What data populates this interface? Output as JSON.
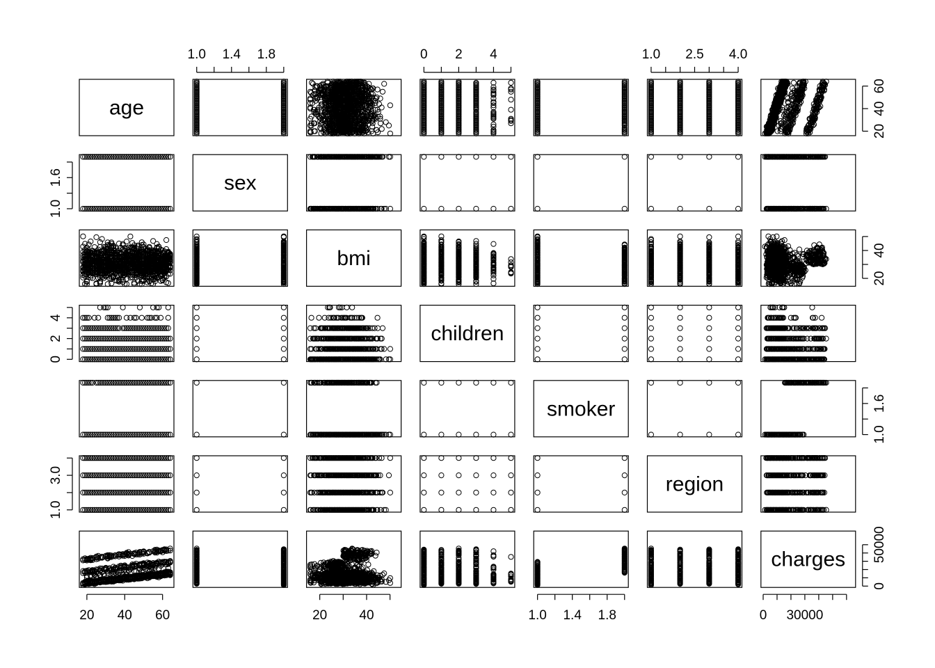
{
  "chart_data": {
    "type": "scatter",
    "subtype": "pairs-matrix",
    "variables": [
      {
        "name": "age",
        "label": "age",
        "range": [
          18,
          64
        ],
        "ticks": [
          20,
          40,
          60
        ],
        "tick_labels": [
          "20",
          "40",
          "60"
        ],
        "ticks_on": "bottom",
        "ticks_side": "bottom"
      },
      {
        "name": "sex",
        "label": "sex",
        "range": [
          1,
          2
        ],
        "ticks": [
          1.0,
          1.2,
          1.4,
          1.6,
          1.8,
          2.0
        ],
        "tick_labels": [
          "1.0",
          "",
          "1.4",
          "",
          "1.8",
          ""
        ],
        "side_ticks": [
          1.0,
          1.3,
          1.6,
          1.9
        ],
        "side_tick_labels": [
          "1.0",
          "",
          "1.6",
          ""
        ],
        "ticks_side": "top-left"
      },
      {
        "name": "bmi",
        "label": "bmi",
        "range": [
          15.96,
          53.13
        ],
        "ticks": [
          20,
          30,
          40,
          50
        ],
        "tick_labels": [
          "20",
          "",
          "40",
          ""
        ],
        "ticks_side": "bottom-right"
      },
      {
        "name": "children",
        "label": "children",
        "range": [
          0,
          5
        ],
        "ticks": [
          0,
          1,
          2,
          3,
          4,
          5
        ],
        "tick_labels": [
          "0",
          "",
          "2",
          "",
          "4",
          ""
        ],
        "ticks_side": "top-left"
      },
      {
        "name": "smoker",
        "label": "smoker",
        "range": [
          1,
          2
        ],
        "ticks": [
          1.0,
          1.2,
          1.4,
          1.6,
          1.8,
          2.0
        ],
        "tick_labels": [
          "1.0",
          "",
          "1.4",
          "",
          "1.8",
          ""
        ],
        "side_ticks": [
          1.0,
          1.3,
          1.6,
          1.9
        ],
        "side_tick_labels": [
          "1.0",
          "",
          "1.6",
          ""
        ],
        "ticks_side": "bottom-right"
      },
      {
        "name": "region",
        "label": "region",
        "range": [
          1,
          4
        ],
        "ticks": [
          1.0,
          1.5,
          2.0,
          2.5,
          3.0,
          3.5,
          4.0
        ],
        "tick_labels": [
          "1.0",
          "",
          "",
          "2.5",
          "",
          "",
          "4.0"
        ],
        "side_ticks": [
          1.0,
          2.0,
          3.0,
          4.0
        ],
        "side_tick_labels": [
          "1.0",
          "",
          "3.0",
          ""
        ],
        "ticks_side": "top-left"
      },
      {
        "name": "charges",
        "label": "charges",
        "range": [
          1121.87,
          63770.43
        ],
        "ticks": [
          0,
          10000,
          20000,
          30000,
          40000,
          50000,
          60000
        ],
        "tick_labels": [
          "0",
          "",
          "",
          "30000",
          "",
          "",
          ""
        ],
        "side_ticks": [
          0,
          10000,
          20000,
          30000,
          40000,
          50000
        ],
        "side_tick_labels": [
          "0",
          "",
          "",
          "",
          "",
          "50000"
        ],
        "ticks_side": "bottom-right"
      }
    ],
    "discrete_levels": {
      "sex": [
        1,
        2
      ],
      "children": [
        0,
        1,
        2,
        3,
        4,
        5
      ],
      "smoker": [
        1,
        2
      ],
      "region": [
        1,
        2,
        3,
        4
      ]
    },
    "marker": "open-circle",
    "point_color": "#000000",
    "background": "#ffffff",
    "grid": false,
    "legend": "none",
    "title": "",
    "xlabel": "",
    "ylabel": ""
  }
}
